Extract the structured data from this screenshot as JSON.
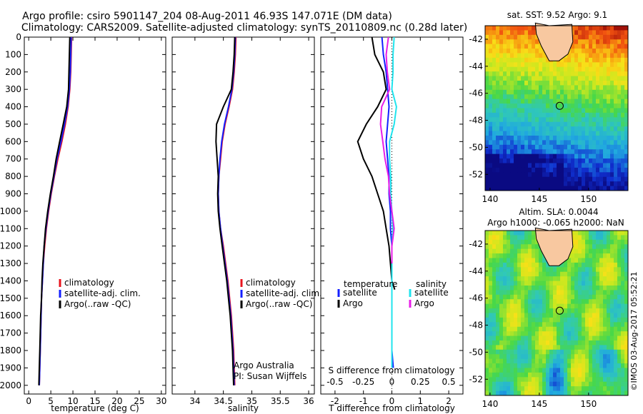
{
  "header": {
    "line1": "Argo profile: csiro 5901147_204 08-Aug-2011 46.93S 147.071E (DM data)",
    "line2": "Climatology: CARS2009. Satellite-adjusted climatology: synTS_20110809.nc (0.28d later)"
  },
  "colors": {
    "climatology": "#e8141e",
    "satellite": "#1420ff",
    "argo": "#000000",
    "satellite_salinity": "#20e4ee",
    "argo_salinity": "#e81ee8"
  },
  "chart_data": [
    {
      "type": "line",
      "xlabel": "temperature (deg C)",
      "ylim": [
        0,
        2050
      ],
      "y_reversed": true,
      "xlim": [
        -1,
        31
      ],
      "xticks": [
        0,
        5,
        10,
        15,
        20,
        25,
        30
      ],
      "yticks": [
        0,
        100,
        200,
        300,
        400,
        500,
        600,
        700,
        800,
        900,
        1000,
        1100,
        1200,
        1300,
        1400,
        1500,
        1600,
        1700,
        1800,
        1900,
        2000
      ],
      "legend": [
        "climatology",
        "satellite-adj. clim.",
        "Argo(..raw -QC)"
      ],
      "series": [
        {
          "name": "climatology",
          "color_key": "climatology",
          "points": [
            [
              9.7,
              0
            ],
            [
              9.6,
              100
            ],
            [
              9.5,
              200
            ],
            [
              9.3,
              300
            ],
            [
              8.9,
              400
            ],
            [
              8.3,
              500
            ],
            [
              7.5,
              600
            ],
            [
              6.6,
              700
            ],
            [
              5.8,
              800
            ],
            [
              5.1,
              900
            ],
            [
              4.5,
              1000
            ],
            [
              4.0,
              1100
            ],
            [
              3.6,
              1200
            ],
            [
              3.3,
              1300
            ],
            [
              3.1,
              1400
            ],
            [
              2.9,
              1500
            ],
            [
              2.8,
              1600
            ],
            [
              2.7,
              1700
            ],
            [
              2.6,
              1800
            ],
            [
              2.5,
              1900
            ],
            [
              2.4,
              2000
            ]
          ]
        },
        {
          "name": "satellite-adj. clim.",
          "color_key": "satellite",
          "points": [
            [
              9.6,
              0
            ],
            [
              9.5,
              100
            ],
            [
              9.4,
              200
            ],
            [
              9.2,
              300
            ],
            [
              8.8,
              400
            ],
            [
              8.1,
              500
            ],
            [
              7.3,
              600
            ],
            [
              6.4,
              700
            ],
            [
              5.7,
              800
            ],
            [
              5.0,
              900
            ],
            [
              4.4,
              1000
            ],
            [
              3.9,
              1100
            ],
            [
              3.5,
              1200
            ],
            [
              3.3,
              1300
            ],
            [
              3.1,
              1400
            ],
            [
              2.9,
              1500
            ],
            [
              2.8,
              1600
            ],
            [
              2.7,
              1700
            ],
            [
              2.6,
              1800
            ],
            [
              2.5,
              1900
            ],
            [
              2.4,
              2000
            ]
          ]
        },
        {
          "name": "Argo(..raw -QC)",
          "color_key": "argo",
          "points": [
            [
              9.3,
              0
            ],
            [
              9.2,
              100
            ],
            [
              9.1,
              200
            ],
            [
              9.0,
              300
            ],
            [
              8.6,
              400
            ],
            [
              7.8,
              500
            ],
            [
              7.0,
              600
            ],
            [
              6.2,
              700
            ],
            [
              5.6,
              800
            ],
            [
              4.9,
              900
            ],
            [
              4.3,
              1000
            ],
            [
              3.8,
              1100
            ],
            [
              3.5,
              1200
            ],
            [
              3.2,
              1300
            ],
            [
              3.0,
              1400
            ],
            [
              2.9,
              1500
            ],
            [
              2.7,
              1600
            ],
            [
              2.6,
              1700
            ],
            [
              2.5,
              1800
            ],
            [
              2.4,
              1900
            ],
            [
              2.3,
              2000
            ]
          ]
        }
      ]
    },
    {
      "type": "line",
      "xlabel": "salinity",
      "ylim": [
        0,
        2050
      ],
      "y_reversed": true,
      "xlim": [
        33.6,
        36.1
      ],
      "xticks": [
        34,
        34.5,
        35,
        35.5,
        36
      ],
      "legend": [
        "climatology",
        "satellite-adj. clim.",
        "Argo(..raw -QC)"
      ],
      "annotation": [
        "Argo Australia",
        "PI: Susan Wijffels"
      ],
      "series": [
        {
          "name": "climatology",
          "color_key": "climatology",
          "points": [
            [
              34.72,
              0
            ],
            [
              34.71,
              100
            ],
            [
              34.69,
              200
            ],
            [
              34.66,
              300
            ],
            [
              34.6,
              400
            ],
            [
              34.53,
              500
            ],
            [
              34.48,
              600
            ],
            [
              34.45,
              700
            ],
            [
              34.42,
              800
            ],
            [
              34.41,
              900
            ],
            [
              34.42,
              1000
            ],
            [
              34.45,
              1100
            ],
            [
              34.5,
              1200
            ],
            [
              34.54,
              1300
            ],
            [
              34.58,
              1400
            ],
            [
              34.61,
              1500
            ],
            [
              34.64,
              1600
            ],
            [
              34.66,
              1700
            ],
            [
              34.68,
              1800
            ],
            [
              34.69,
              1900
            ],
            [
              34.7,
              2000
            ]
          ]
        },
        {
          "name": "satellite-adj. clim.",
          "color_key": "satellite",
          "points": [
            [
              34.71,
              0
            ],
            [
              34.7,
              100
            ],
            [
              34.68,
              200
            ],
            [
              34.65,
              300
            ],
            [
              34.59,
              400
            ],
            [
              34.52,
              500
            ],
            [
              34.47,
              600
            ],
            [
              34.44,
              700
            ],
            [
              34.42,
              800
            ],
            [
              34.41,
              900
            ],
            [
              34.42,
              1000
            ],
            [
              34.45,
              1100
            ],
            [
              34.49,
              1200
            ],
            [
              34.53,
              1300
            ],
            [
              34.57,
              1400
            ],
            [
              34.6,
              1500
            ],
            [
              34.63,
              1600
            ],
            [
              34.65,
              1700
            ],
            [
              34.67,
              1800
            ],
            [
              34.68,
              1900
            ],
            [
              34.69,
              2000
            ]
          ]
        },
        {
          "name": "Argo(..raw -QC)",
          "color_key": "argo",
          "points": [
            [
              34.7,
              0
            ],
            [
              34.69,
              100
            ],
            [
              34.67,
              200
            ],
            [
              34.64,
              300
            ],
            [
              34.5,
              400
            ],
            [
              34.38,
              500
            ],
            [
              34.37,
              600
            ],
            [
              34.39,
              700
            ],
            [
              34.41,
              800
            ],
            [
              34.4,
              900
            ],
            [
              34.41,
              1000
            ],
            [
              34.44,
              1100
            ],
            [
              34.48,
              1200
            ],
            [
              34.52,
              1300
            ],
            [
              34.56,
              1400
            ],
            [
              34.59,
              1500
            ],
            [
              34.62,
              1600
            ],
            [
              34.64,
              1700
            ],
            [
              34.66,
              1800
            ],
            [
              34.67,
              1900
            ],
            [
              34.68,
              2000
            ]
          ]
        }
      ]
    },
    {
      "type": "line",
      "xlabel": "T difference from climatology",
      "xlabel_top": "S difference from climatology",
      "ylim": [
        0,
        2050
      ],
      "y_reversed": true,
      "xlim": [
        -2.5,
        2.5
      ],
      "xticks": [
        -2,
        -1,
        0,
        1,
        2
      ],
      "s_ticks": [
        -0.5,
        -0.25,
        0,
        0.25,
        0.5
      ],
      "s_tick_labels": [
        "-0.5",
        "-0.25",
        "0",
        "0.25",
        "0.5"
      ],
      "legend_temperature": [
        "temperature",
        "satellite",
        "Argo"
      ],
      "legend_salinity": [
        "salinity",
        "satellite",
        "Argo"
      ],
      "series": [
        {
          "name": "satellite",
          "color_key": "satellite",
          "points": [
            [
              -0.35,
              0
            ],
            [
              -0.3,
              100
            ],
            [
              -0.2,
              200
            ],
            [
              -0.15,
              300
            ],
            [
              -0.1,
              400
            ],
            [
              -0.15,
              500
            ],
            [
              -0.2,
              600
            ],
            [
              -0.15,
              700
            ],
            [
              -0.1,
              800
            ],
            [
              -0.1,
              900
            ],
            [
              -0.05,
              1000
            ],
            [
              -0.05,
              1100
            ],
            [
              0,
              1200
            ],
            [
              0,
              1300
            ],
            [
              0,
              1400
            ],
            [
              0,
              1500
            ],
            [
              0,
              1600
            ],
            [
              0,
              1700
            ],
            [
              0,
              1800
            ],
            [
              0.05,
              1900
            ]
          ]
        },
        {
          "name": "Argo",
          "color_key": "argo",
          "points": [
            [
              -0.7,
              0
            ],
            [
              -0.6,
              100
            ],
            [
              -0.3,
              200
            ],
            [
              -0.2,
              300
            ],
            [
              -0.5,
              400
            ],
            [
              -0.9,
              500
            ],
            [
              -1.2,
              600
            ],
            [
              -1.0,
              700
            ],
            [
              -0.7,
              800
            ],
            [
              -0.5,
              900
            ],
            [
              -0.3,
              1000
            ],
            [
              -0.2,
              1100
            ],
            [
              -0.1,
              1200
            ],
            [
              -0.05,
              1300
            ],
            [
              0,
              1400
            ],
            [
              0.1,
              1450
            ]
          ]
        },
        {
          "name": "satellite",
          "color_key": "satellite_salinity",
          "points": [
            [
              0.02,
              0
            ],
            [
              0.01,
              100
            ],
            [
              0.01,
              200
            ],
            [
              0.0,
              300
            ],
            [
              0.04,
              400
            ],
            [
              0.02,
              500
            ],
            [
              -0.02,
              600
            ],
            [
              -0.02,
              700
            ],
            [
              -0.01,
              800
            ],
            [
              -0.01,
              900
            ],
            [
              0.0,
              1000
            ],
            [
              0.01,
              1100
            ],
            [
              0.0,
              1200
            ],
            [
              0.0,
              1300
            ],
            [
              0.0,
              1400
            ],
            [
              0.0,
              1500
            ],
            [
              0.0,
              1600
            ],
            [
              0.0,
              1700
            ],
            [
              0.0,
              1800
            ],
            [
              0.0,
              1900
            ]
          ]
        },
        {
          "name": "Argo",
          "color_key": "argo_salinity",
          "points": [
            [
              -0.03,
              0
            ],
            [
              -0.05,
              100
            ],
            [
              -0.04,
              200
            ],
            [
              -0.02,
              300
            ],
            [
              -0.09,
              400
            ],
            [
              -0.1,
              500
            ],
            [
              -0.08,
              600
            ],
            [
              -0.06,
              700
            ],
            [
              -0.03,
              800
            ],
            [
              -0.02,
              900
            ],
            [
              0.0,
              1000
            ],
            [
              0.02,
              1100
            ],
            [
              0.0,
              1200
            ],
            [
              0.0,
              1300
            ]
          ]
        }
      ]
    }
  ],
  "maps": {
    "sst": {
      "title": "sat. SST: 9.52 Argo: 9.1",
      "title_lines": [],
      "lon_range": [
        139.5,
        154
      ],
      "lat_range": [
        -53.2,
        -41
      ],
      "xticks": [
        140,
        145,
        150
      ],
      "yticks": [
        -42,
        -44,
        -46,
        -48,
        -50,
        -52
      ],
      "marker": {
        "lon": 147.07,
        "lat": -46.93
      }
    },
    "sla": {
      "title": "",
      "title_lines": [
        "Altim. SLA: 0.0044",
        "Argo h1000: -0.065 h2000: NaN"
      ],
      "lon_range": [
        139.5,
        154
      ],
      "lat_range": [
        -53.2,
        -41
      ],
      "xticks": [
        140,
        145,
        150
      ],
      "yticks": [
        -42,
        -44,
        -46,
        -48,
        -50,
        -52
      ],
      "marker": {
        "lon": 147.07,
        "lat": -46.93
      }
    }
  },
  "footer": {
    "watermark": "©IMOS 03-Aug-2017 05:52:21"
  }
}
